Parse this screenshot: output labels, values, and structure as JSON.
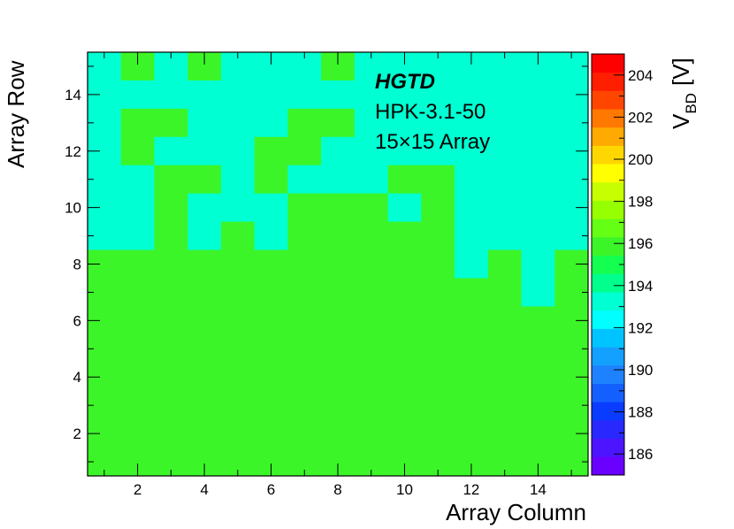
{
  "chart_data": {
    "type": "heatmap",
    "xlabel": "Array Column",
    "ylabel": "Array Row",
    "zlabel_main": "V",
    "zlabel_sub": "BD",
    "zlabel_unit": "[V]",
    "xlim": [
      0.5,
      15.5
    ],
    "ylim": [
      0.5,
      15.5
    ],
    "zlim": [
      185,
      205
    ],
    "x_ticks": [
      2,
      4,
      6,
      8,
      10,
      12,
      14
    ],
    "y_ticks": [
      2,
      4,
      6,
      8,
      10,
      12,
      14
    ],
    "z_ticks": [
      186,
      188,
      190,
      192,
      194,
      196,
      198,
      200,
      202,
      204
    ],
    "annotations": [
      "HGTD",
      "HPK-3.1-50",
      "15×15 Array"
    ],
    "rows_top_to_bottom": [
      [
        193.0,
        195.5,
        193.0,
        195.5,
        193.0,
        193.0,
        193.0,
        195.5,
        193.0,
        193.0,
        193.0,
        193.0,
        193.0,
        193.0,
        193.0
      ],
      [
        193.0,
        193.0,
        193.0,
        193.0,
        193.0,
        193.0,
        193.0,
        193.0,
        193.0,
        193.0,
        193.0,
        193.0,
        193.0,
        193.0,
        193.0
      ],
      [
        193.0,
        195.5,
        195.5,
        193.0,
        193.0,
        193.0,
        195.5,
        195.5,
        193.0,
        193.0,
        193.0,
        193.0,
        193.0,
        193.0,
        193.0
      ],
      [
        193.0,
        195.5,
        193.0,
        193.0,
        193.0,
        195.5,
        195.5,
        193.0,
        193.0,
        193.0,
        193.0,
        193.0,
        193.0,
        193.0,
        193.0
      ],
      [
        193.0,
        193.0,
        195.5,
        195.5,
        193.0,
        195.5,
        193.0,
        193.0,
        193.0,
        195.5,
        195.5,
        193.0,
        193.0,
        193.0,
        193.0
      ],
      [
        193.0,
        193.0,
        195.5,
        193.0,
        193.0,
        193.0,
        195.5,
        195.5,
        195.5,
        193.0,
        195.5,
        193.0,
        193.0,
        193.0,
        193.0
      ],
      [
        193.0,
        193.0,
        195.5,
        193.0,
        195.5,
        193.0,
        195.5,
        195.5,
        195.5,
        195.5,
        195.5,
        193.0,
        193.0,
        193.0,
        193.0
      ],
      [
        195.5,
        196.3,
        195.5,
        195.5,
        195.5,
        195.5,
        195.5,
        195.5,
        195.5,
        195.5,
        195.5,
        193.0,
        195.5,
        193.0,
        195.5
      ],
      [
        195.5,
        195.5,
        195.5,
        195.5,
        195.5,
        195.5,
        195.5,
        196.3,
        195.5,
        195.5,
        196.3,
        195.5,
        195.5,
        193.0,
        195.5
      ],
      [
        195.5,
        195.5,
        195.5,
        195.5,
        195.5,
        195.5,
        196.3,
        195.5,
        195.5,
        195.5,
        195.5,
        195.5,
        195.5,
        195.5,
        195.5
      ],
      [
        195.5,
        195.5,
        195.5,
        195.5,
        195.5,
        196.3,
        195.5,
        195.5,
        195.5,
        196.3,
        195.5,
        195.5,
        195.5,
        195.5,
        195.5
      ],
      [
        195.5,
        195.5,
        195.5,
        195.5,
        196.3,
        195.5,
        195.5,
        195.5,
        195.5,
        196.3,
        195.5,
        195.5,
        195.5,
        195.5,
        195.5
      ],
      [
        195.5,
        195.5,
        196.3,
        195.5,
        196.3,
        195.5,
        196.3,
        195.5,
        195.5,
        195.5,
        195.5,
        195.5,
        195.5,
        195.5,
        195.5
      ],
      [
        195.5,
        195.5,
        195.5,
        195.5,
        195.5,
        195.5,
        195.5,
        195.5,
        195.5,
        195.5,
        195.5,
        195.5,
        195.5,
        195.5,
        195.5
      ],
      [
        195.5,
        196.3,
        195.5,
        195.5,
        195.5,
        195.5,
        195.5,
        195.5,
        195.5,
        195.5,
        195.5,
        195.5,
        195.5,
        195.5,
        195.5
      ]
    ],
    "palette": [
      "#6a00ff",
      "#4d14ff",
      "#2828ff",
      "#0a3cff",
      "#1460ff",
      "#1e82ff",
      "#14a0ff",
      "#00c4ff",
      "#00ffff",
      "#00ffd2",
      "#00ff8c",
      "#14ff50",
      "#3cf528",
      "#64ff14",
      "#96ff00",
      "#c8ff00",
      "#ffff00",
      "#ffd700",
      "#ffaa00",
      "#ff7800",
      "#ff4600",
      "#ff1e00",
      "#ff0000"
    ]
  }
}
